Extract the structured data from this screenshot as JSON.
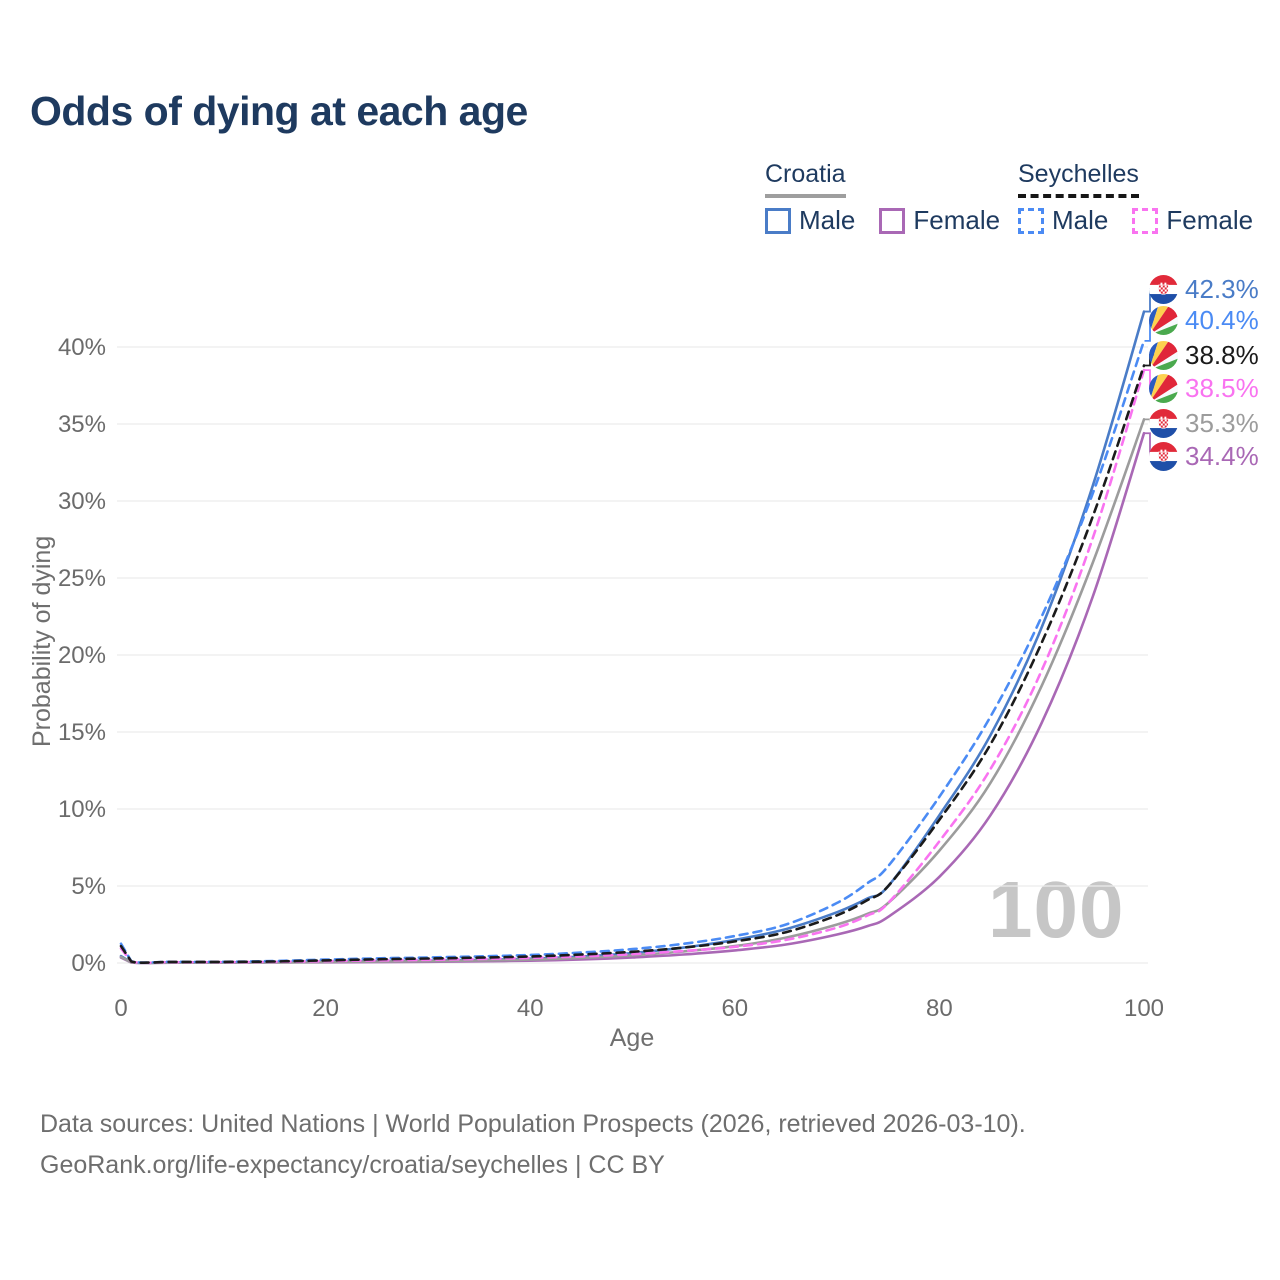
{
  "title": "Odds of dying at each age",
  "watermark": "100",
  "legend": {
    "groups": [
      {
        "title": "Croatia",
        "line_style": "solid",
        "underline_color": "#9e9e9e",
        "items": [
          {
            "label": "Male",
            "series": "croatia_male"
          },
          {
            "label": "Female",
            "series": "croatia_female"
          }
        ]
      },
      {
        "title": "Seychelles",
        "line_style": "dashed",
        "underline_color": "#161616",
        "items": [
          {
            "label": "Male",
            "series": "seychelles_male"
          },
          {
            "label": "Female",
            "series": "seychelles_female"
          }
        ]
      }
    ]
  },
  "axes": {
    "x": {
      "label": "Age",
      "ticks": [
        {
          "label": "0",
          "value": 0
        },
        {
          "label": "20",
          "value": 20
        },
        {
          "label": "40",
          "value": 40
        },
        {
          "label": "60",
          "value": 60
        },
        {
          "label": "80",
          "value": 80
        },
        {
          "label": "100",
          "value": 100
        }
      ]
    },
    "y": {
      "label": "Probability of dying",
      "ticks": [
        {
          "label": "0%",
          "value": 0
        },
        {
          "label": "5%",
          "value": 5
        },
        {
          "label": "10%",
          "value": 10
        },
        {
          "label": "15%",
          "value": 15
        },
        {
          "label": "20%",
          "value": 20
        },
        {
          "label": "25%",
          "value": 25
        },
        {
          "label": "30%",
          "value": 30
        },
        {
          "label": "35%",
          "value": 35
        },
        {
          "label": "40%",
          "value": 40
        }
      ]
    }
  },
  "chart_data": {
    "type": "line",
    "title": "Odds of dying at each age",
    "xlabel": "Age",
    "ylabel": "Probability of dying",
    "xlim": [
      0,
      100
    ],
    "ylim_percent": [
      0,
      44
    ],
    "grid": "horizontal",
    "x": [
      0,
      1,
      5,
      10,
      15,
      20,
      25,
      30,
      35,
      40,
      45,
      50,
      55,
      60,
      65,
      70,
      73,
      75,
      80,
      85,
      90,
      95,
      100
    ],
    "series": [
      {
        "id": "croatia_male",
        "name": "Croatia Male",
        "country": "Croatia",
        "sex": "Male",
        "color": "#4a7cc7",
        "dash": "solid",
        "flag": "croatia-flag",
        "end_label": "42.3%",
        "values": [
          0.45,
          0.04,
          0.03,
          0.03,
          0.05,
          0.09,
          0.12,
          0.15,
          0.2,
          0.28,
          0.42,
          0.65,
          1.0,
          1.5,
          2.2,
          3.3,
          4.2,
          5.0,
          9.6,
          14.8,
          21.8,
          31.0,
          42.3
        ]
      },
      {
        "id": "croatia_female",
        "name": "Croatia Female",
        "country": "Croatia",
        "sex": "Female",
        "color": "#a968b5",
        "dash": "solid",
        "flag": "croatia-flag",
        "end_label": "34.4%",
        "values": [
          0.35,
          0.03,
          0.02,
          0.02,
          0.03,
          0.045,
          0.06,
          0.08,
          0.11,
          0.15,
          0.23,
          0.36,
          0.55,
          0.82,
          1.2,
          1.85,
          2.4,
          3.0,
          5.6,
          9.6,
          15.6,
          23.8,
          34.4
        ]
      },
      {
        "id": "croatia_both",
        "name": "Croatia Both sexes",
        "country": "Croatia",
        "sex": "Both",
        "color": "#9c9c9c",
        "dash": "solid",
        "flag": "croatia-flag",
        "end_label": "35.3%",
        "values": [
          0.4,
          0.035,
          0.025,
          0.025,
          0.04,
          0.07,
          0.09,
          0.12,
          0.16,
          0.22,
          0.33,
          0.5,
          0.75,
          1.1,
          1.65,
          2.5,
          3.2,
          3.9,
          7.3,
          11.7,
          18.0,
          26.0,
          35.3
        ]
      },
      {
        "id": "seychelles_male",
        "name": "Seychelles Male",
        "country": "Seychelles",
        "sex": "Male",
        "color": "#4b8bf4",
        "dash": "dashed",
        "flag": "seychelles-flag",
        "end_label": "40.4%",
        "values": [
          1.25,
          0.12,
          0.08,
          0.08,
          0.13,
          0.22,
          0.3,
          0.36,
          0.43,
          0.52,
          0.68,
          0.9,
          1.25,
          1.75,
          2.5,
          3.9,
          5.2,
          6.3,
          10.8,
          16.0,
          22.5,
          30.5,
          40.4
        ]
      },
      {
        "id": "seychelles_female",
        "name": "Seychelles Female",
        "country": "Seychelles",
        "sex": "Female",
        "color": "#f973f0",
        "dash": "dashed",
        "flag": "seychelles-flag",
        "end_label": "38.5%",
        "values": [
          0.95,
          0.09,
          0.06,
          0.06,
          0.08,
          0.12,
          0.17,
          0.21,
          0.26,
          0.33,
          0.43,
          0.57,
          0.78,
          1.05,
          1.5,
          2.3,
          3.1,
          3.9,
          7.9,
          12.6,
          19.0,
          27.6,
          38.5
        ]
      },
      {
        "id": "seychelles_both",
        "name": "Seychelles Both sexes",
        "country": "Seychelles",
        "sex": "Both",
        "color": "#1b1b1b",
        "dash": "dashed",
        "flag": "seychelles-flag",
        "end_label": "38.8%",
        "values": [
          1.1,
          0.1,
          0.07,
          0.07,
          0.1,
          0.17,
          0.24,
          0.29,
          0.35,
          0.42,
          0.55,
          0.73,
          1.0,
          1.4,
          2.0,
          3.1,
          4.1,
          5.0,
          9.3,
          14.2,
          20.8,
          29.0,
          38.8
        ]
      }
    ]
  },
  "footer": {
    "line1": "Data sources: United Nations | World Population Prospects (2026, retrieved 2026-03-10).",
    "line2": "GeoRank.org/life-expectancy/croatia/seychelles | CC BY"
  }
}
